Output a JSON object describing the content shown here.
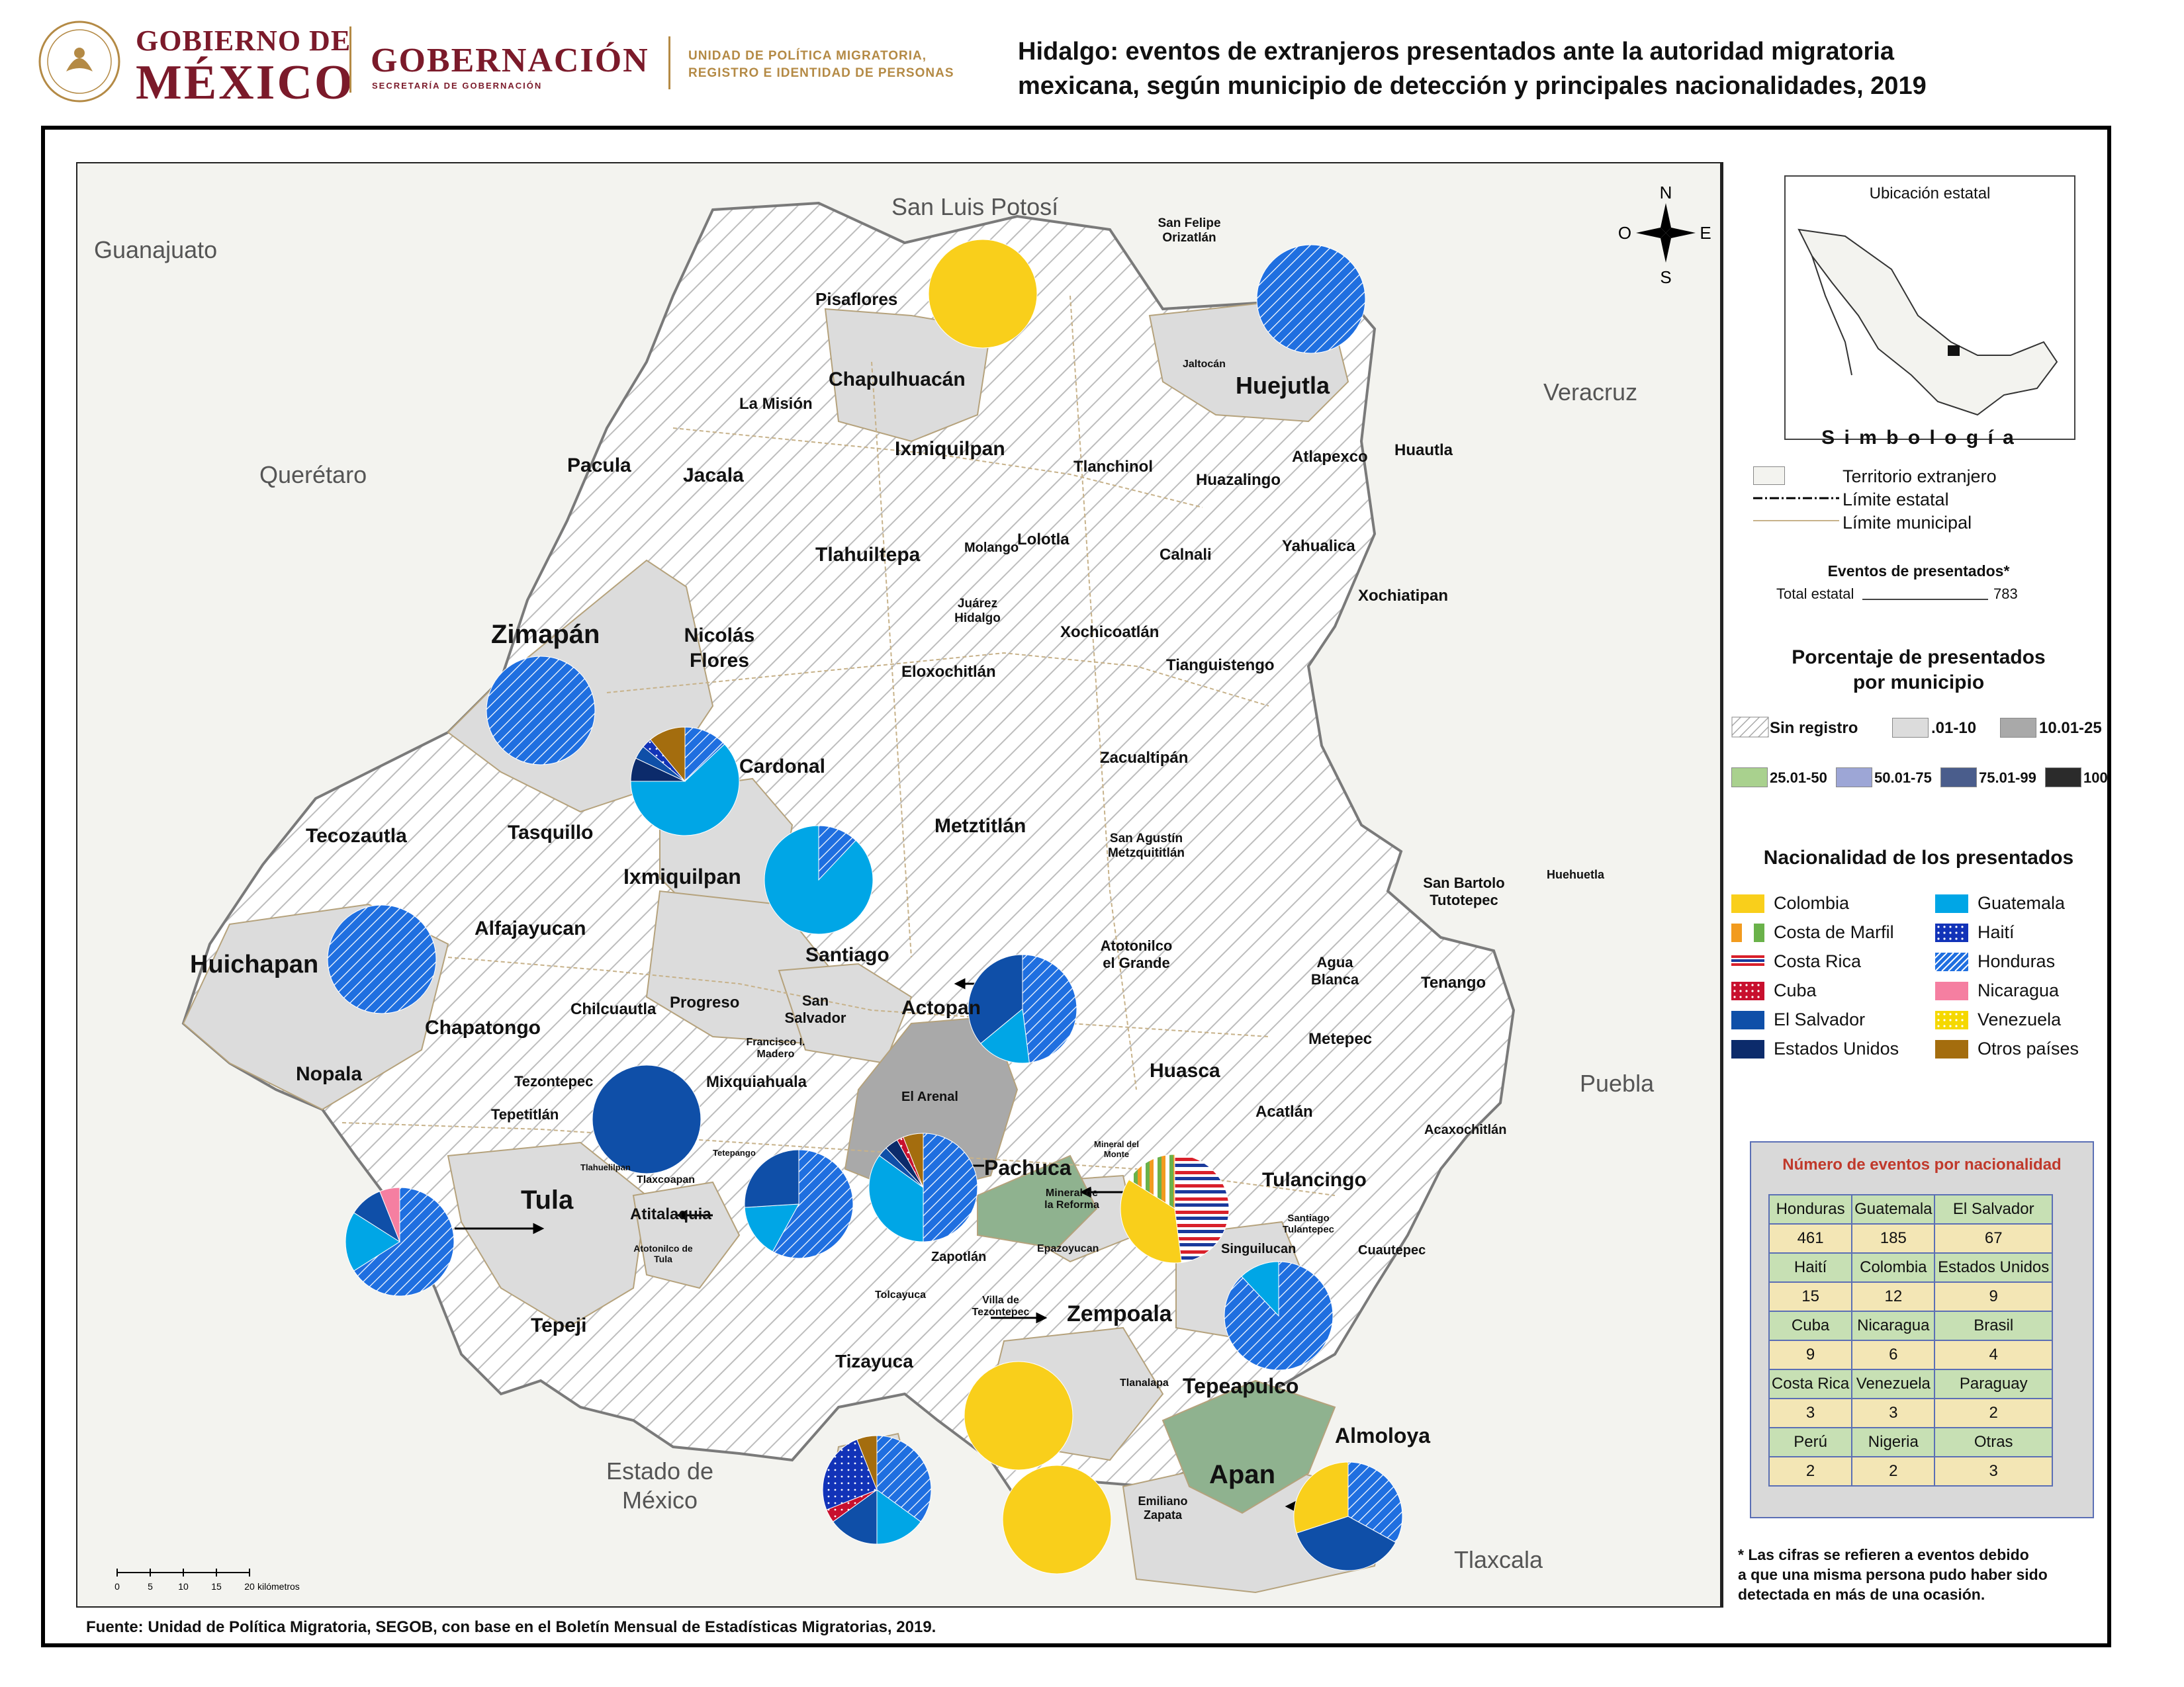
{
  "header": {
    "gobierno_line1": "GOBIERNO DE",
    "gobierno_line2": "MÉXICO",
    "gobernacion": "GOBERNACIÓN",
    "gobernacion_sub": "SECRETARÍA DE GOBERNACIÓN",
    "unidad_line1": "UNIDAD DE POLÍTICA MIGRATORIA,",
    "unidad_line2": "REGISTRO E IDENTIDAD DE PERSONAS",
    "title_line1": "Hidalgo: eventos de extranjeros presentados ante la autoridad migratoria",
    "title_line2": "mexicana, según municipio de detección y principales nacionalidades, 2019"
  },
  "map": {
    "neighbor_states": [
      "San Luis Potosí",
      "Guanajuato",
      "Querétaro",
      "Veracruz",
      "Puebla",
      "Tlaxcala",
      "Estado de México"
    ],
    "compass": {
      "n": "N",
      "s": "S",
      "e": "E",
      "o": "O"
    },
    "scale": {
      "ticks": [
        "0",
        "5",
        "10",
        "15",
        "20"
      ],
      "unit": "kilómetros"
    },
    "municipios": {
      "pisaflores": "Pisaflores",
      "chapulhuacan": "Chapulhuacán",
      "la_mision": "La Misión",
      "san_felipe": "San Felipe Orizatlán",
      "jaltocan": "Jaltocán",
      "huejutla": "Huejutla",
      "pacula": "Pacula",
      "jacala": "Jacala",
      "tepehuacan": "Ixmiquilpan",
      "tlanchinol": "Tlanchinol",
      "huazalingo": "Huazalingo",
      "atlapexco": "Atlapexco",
      "huautla": "Huautla",
      "tlahuiltepa": "Tlahuiltepa",
      "molango": "Molango",
      "lolotla": "Lolotla",
      "calnali": "Calnali",
      "yahualica": "Yahualica",
      "xochiatipan": "Xochiatipan",
      "zimapan": "Zimapán",
      "nicolas_flores": "Nicolás Flores",
      "juarez": "Juárez Hidalgo",
      "xochicoatlan": "Xochicoatlán",
      "eloxochitlan": "Eloxochitlán",
      "tianguistengo": "Tianguistengo",
      "cardonal": "Cardonal",
      "zacualtipan": "Zacualtipán",
      "tecozautla": "Tecozautla",
      "tasquillo": "Tasquillo",
      "metztitlan": "Metztitlán",
      "san_agustin": "San Agustín Metzquititlán",
      "ixmiquilpan": "Ixmiquilpan",
      "san_bartolo": "San Bartolo Tutotepec",
      "huehuetla": "Huehuetla",
      "alfajayucan": "Alfajayucan",
      "huichapan": "Huichapan",
      "santiago": "Santiago",
      "atotonilco_grande": "Atotonilco el Grande",
      "agua_blanca": "Agua Blanca",
      "tenango": "Tenango",
      "chilcuautla": "Chilcuautla",
      "progreso": "Progreso",
      "san_salvador": "San Salvador",
      "actopan": "Actopan",
      "chapatongo": "Chapatongo",
      "francisco_madero": "Francisco I. Madero",
      "metepec": "Metepec",
      "nopala": "Nopala",
      "tezontepec": "Tezontepec",
      "mixquiahuala": "Mixquiahuala",
      "el_arenal": "El Arenal",
      "huasca": "Huasca",
      "acatlan": "Acatlán",
      "tepetitlan": "Tepetitlán",
      "acaxochitlan": "Acaxochitlán",
      "tlahuelilpan": "Tlahuelilpan",
      "tetepango": "Tetepango",
      "mineral_monte": "Mineral del Monte",
      "tlaxcoapan": "Tlaxcoapan",
      "pachuca": "Pachuca",
      "tula": "Tula",
      "tulancingo": "Tulancingo",
      "mineral_reforma": "Mineral de la Reforma",
      "santiago_tulantepec": "Santiago Tulantepec",
      "atitalaquia": "Atitalaquia",
      "singuilucan": "Singuilucan",
      "epazoyucan": "Epazoyucan",
      "cuautepec": "Cuautepec",
      "zapotlan": "Zapotlán",
      "atotonilco_tula": "Atotonilco de Tula",
      "tolcayuca": "Tolcayuca",
      "villa_tezontepec": "Villa de Tezontepec",
      "zempoala": "Zempoala",
      "tepeji": "Tepeji",
      "tizayuca": "Tizayuca",
      "tlanalapa": "Tlanalapa",
      "tepeapulco": "Tepeapulco",
      "almoloya": "Almoloya",
      "apan": "Apan",
      "emiliano_zapata": "Emiliano Zapata"
    }
  },
  "legend": {
    "ubicacion": "Ubicación estatal",
    "simbologia": "S i m b o l o g í a",
    "territorio": "Territorio extranjero",
    "limite_estatal": "Límite estatal",
    "limite_municipal": "Límite municipal",
    "eventos_title": "Eventos de presentados*",
    "total_label": "Total estatal",
    "total_value": "783",
    "porcentaje_title_1": "Porcentaje de presentados",
    "porcentaje_title_2": "por municipio",
    "classes": [
      {
        "label": "Sin registro",
        "color": "hatch"
      },
      {
        "label": ".01-10",
        "color": "#dcdcdc"
      },
      {
        "label": "10.01-25",
        "color": "#a9a9a9"
      },
      {
        "label": "25.01-50",
        "color": "#a9d18e"
      },
      {
        "label": "50.01-75",
        "color": "#9da6d6"
      },
      {
        "label": "75.01-99",
        "color": "#4a5d8c"
      },
      {
        "label": "100",
        "color": "#2b2b2b"
      }
    ],
    "nacionalidad_title": "Nacionalidad de los presentados",
    "nationalities": [
      {
        "label": "Colombia",
        "color": "#f9cf1b"
      },
      {
        "label": "Guatemala",
        "color": "#00a6e6"
      },
      {
        "label": "Costa de Marfil",
        "color": "#f29b1f"
      },
      {
        "label": "Haití",
        "color": "#1233b8"
      },
      {
        "label": "Costa Rica",
        "color": "#d9202a"
      },
      {
        "label": "Honduras",
        "color": "#1f6fe0"
      },
      {
        "label": "Cuba",
        "color": "#c8102e"
      },
      {
        "label": "Nicaragua",
        "color": "#f57fa1"
      },
      {
        "label": "El Salvador",
        "color": "#0f4fa8"
      },
      {
        "label": "Venezuela",
        "color": "#f5d800"
      },
      {
        "label": "Estados Unidos",
        "color": "#0c2b6b"
      },
      {
        "label": "Otros países",
        "color": "#a46d0e"
      }
    ],
    "numero_title": "Número de eventos por nacionalidad",
    "counts_table": [
      [
        {
          "h": "Honduras",
          "v": "461"
        },
        {
          "h": "Guatemala",
          "v": "185"
        },
        {
          "h": "El Salvador",
          "v": "67"
        }
      ],
      [
        {
          "h": "Haití",
          "v": "15"
        },
        {
          "h": "Colombia",
          "v": "12"
        },
        {
          "h": "Estados Unidos",
          "v": "9"
        }
      ],
      [
        {
          "h": "Cuba",
          "v": "9"
        },
        {
          "h": "Nicaragua",
          "v": "6"
        },
        {
          "h": "Brasil",
          "v": "4"
        }
      ],
      [
        {
          "h": "Costa Rica",
          "v": "3"
        },
        {
          "h": "Venezuela",
          "v": "3"
        },
        {
          "h": "Paraguay",
          "v": "2"
        }
      ],
      [
        {
          "h": "Perú",
          "v": "2"
        },
        {
          "h": "Nigeria",
          "v": "2"
        },
        {
          "h": "Otras",
          "v": "3"
        }
      ]
    ],
    "footnote_1": "* Las cifras se refieren a eventos debido",
    "footnote_2": "a que una misma persona pudo haber sido",
    "footnote_3": "detectada en más de una ocasión."
  },
  "source": "Fuente: Unidad de Política Migratoria, SEGOB, con base en el Boletín Mensual de Estadísticas Migratorias, 2019.",
  "pies": [
    {
      "name": "chapulhuacan",
      "slices": [
        {
          "n": "Colombia",
          "f": 1.0
        }
      ]
    },
    {
      "name": "huejutla",
      "slices": [
        {
          "n": "Honduras",
          "f": 1.0
        }
      ]
    },
    {
      "name": "zimapan",
      "slices": [
        {
          "n": "Honduras",
          "f": 1.0
        }
      ]
    },
    {
      "name": "cardonal",
      "slices": [
        {
          "n": "Honduras",
          "f": 0.13
        },
        {
          "n": "Guatemala",
          "f": 0.62
        },
        {
          "n": "Estados Unidos",
          "f": 0.07
        },
        {
          "n": "El Salvador",
          "f": 0.04
        },
        {
          "n": "Haití",
          "f": 0.03
        },
        {
          "n": "Otros países",
          "f": 0.11
        }
      ]
    },
    {
      "name": "ixmiquilpan",
      "slices": [
        {
          "n": "Honduras",
          "f": 0.12
        },
        {
          "n": "Guatemala",
          "f": 0.88
        }
      ]
    },
    {
      "name": "huichapan",
      "slices": [
        {
          "n": "Honduras",
          "f": 1.0
        }
      ]
    },
    {
      "name": "actopan",
      "slices": [
        {
          "n": "Honduras",
          "f": 0.48
        },
        {
          "n": "Guatemala",
          "f": 0.16
        },
        {
          "n": "El Salvador",
          "f": 0.36
        }
      ]
    },
    {
      "name": "tezontepec",
      "slices": [
        {
          "n": "El Salvador",
          "f": 1.0
        }
      ]
    },
    {
      "name": "tula",
      "slices": [
        {
          "n": "Honduras",
          "f": 0.66
        },
        {
          "n": "Guatemala",
          "f": 0.18
        },
        {
          "n": "El Salvador",
          "f": 0.1
        },
        {
          "n": "Nicaragua",
          "f": 0.06
        }
      ]
    },
    {
      "name": "atitalaquia",
      "slices": [
        {
          "n": "Honduras",
          "f": 0.58
        },
        {
          "n": "Guatemala",
          "f": 0.16
        },
        {
          "n": "El Salvador",
          "f": 0.26
        }
      ]
    },
    {
      "name": "pachuca",
      "slices": [
        {
          "n": "Honduras",
          "f": 0.5
        },
        {
          "n": "Guatemala",
          "f": 0.35
        },
        {
          "n": "El Salvador",
          "f": 0.03
        },
        {
          "n": "Estados Unidos",
          "f": 0.04
        },
        {
          "n": "Cuba",
          "f": 0.02
        },
        {
          "n": "Otros países",
          "f": 0.06
        }
      ]
    },
    {
      "name": "mineral_reforma",
      "slices": [
        {
          "n": "Costa Rica",
          "f": 0.48
        },
        {
          "n": "Colombia",
          "f": 0.36
        },
        {
          "n": "Costa de Marfil",
          "f": 0.16
        }
      ]
    },
    {
      "name": "singuilucan",
      "slices": [
        {
          "n": "Honduras",
          "f": 0.88
        },
        {
          "n": "Guatemala",
          "f": 0.12
        }
      ]
    },
    {
      "name": "zempoala",
      "slices": [
        {
          "n": "Colombia",
          "f": 1.0
        }
      ]
    },
    {
      "name": "tizayuca",
      "slices": [
        {
          "n": "Honduras",
          "f": 0.35
        },
        {
          "n": "Guatemala",
          "f": 0.15
        },
        {
          "n": "El Salvador",
          "f": 0.15
        },
        {
          "n": "Cuba",
          "f": 0.04
        },
        {
          "n": "Haití",
          "f": 0.25
        },
        {
          "n": "Otros países",
          "f": 0.06
        }
      ]
    },
    {
      "name": "apan_colombia",
      "slices": [
        {
          "n": "Colombia",
          "f": 1.0
        }
      ]
    },
    {
      "name": "apan",
      "slices": [
        {
          "n": "Honduras",
          "f": 0.33
        },
        {
          "n": "El Salvador",
          "f": 0.37
        },
        {
          "n": "Colombia",
          "f": 0.3
        }
      ]
    }
  ]
}
